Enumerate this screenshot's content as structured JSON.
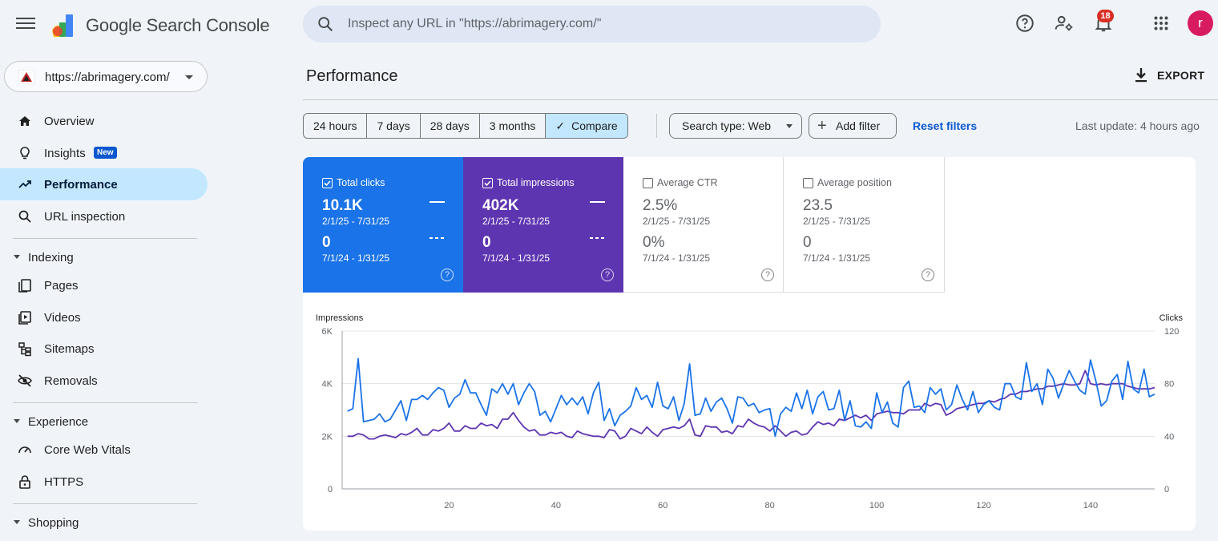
{
  "app": {
    "title": "Google Search Console"
  },
  "search": {
    "placeholder": "Inspect any URL in \"https://abrimagery.com/\""
  },
  "topbar": {
    "notification_count": "18",
    "avatar_letter": "r"
  },
  "property": {
    "url": "https://abrimagery.com/"
  },
  "nav": {
    "items": [
      {
        "label": "Overview",
        "icon": "home-icon"
      },
      {
        "label": "Insights",
        "icon": "lightbulb-icon",
        "badge": "New"
      },
      {
        "label": "Performance",
        "icon": "trending-up-icon",
        "active": true
      },
      {
        "label": "URL inspection",
        "icon": "search-icon"
      }
    ],
    "indexing": {
      "label": "Indexing",
      "items": [
        {
          "label": "Pages",
          "icon": "pages-icon"
        },
        {
          "label": "Videos",
          "icon": "video-icon"
        },
        {
          "label": "Sitemaps",
          "icon": "sitemap-icon"
        },
        {
          "label": "Removals",
          "icon": "eye-off-icon"
        }
      ]
    },
    "experience": {
      "label": "Experience",
      "items": [
        {
          "label": "Core Web Vitals",
          "icon": "speed-gauge-icon"
        },
        {
          "label": "HTTPS",
          "icon": "lock-icon"
        }
      ]
    },
    "shopping": {
      "label": "Shopping"
    }
  },
  "page": {
    "title": "Performance",
    "export_label": "EXPORT"
  },
  "filters": {
    "date_ranges": [
      "24 hours",
      "7 days",
      "28 days",
      "3 months",
      "Compare"
    ],
    "selected": "Compare",
    "search_type": "Search type: Web",
    "add_filter": "Add filter",
    "reset": "Reset filters",
    "last_update": "Last update: 4 hours ago"
  },
  "metrics": {
    "clicks": {
      "label": "Total clicks",
      "value": "10.1K",
      "range": "2/1/25 - 7/31/25",
      "compare_value": "0",
      "compare_range": "7/1/24 - 1/31/25",
      "checked": true,
      "color": "#1a73e8"
    },
    "impressions": {
      "label": "Total impressions",
      "value": "402K",
      "range": "2/1/25 - 7/31/25",
      "compare_value": "0",
      "compare_range": "7/1/24 - 1/31/25",
      "checked": true,
      "color": "#5e35b1"
    },
    "ctr": {
      "label": "Average CTR",
      "value": "2.5%",
      "range": "2/1/25 - 7/31/25",
      "compare_value": "0%",
      "compare_range": "7/1/24 - 1/31/25",
      "checked": false
    },
    "position": {
      "label": "Average position",
      "value": "23.5",
      "range": "2/1/25 - 7/31/25",
      "compare_value": "0",
      "compare_range": "7/1/24 - 1/31/25",
      "checked": false
    }
  },
  "chart_data": {
    "type": "line",
    "left_axis_label": "Impressions",
    "right_axis_label": "Clicks",
    "left_ticks": [
      "0",
      "2K",
      "4K",
      "6K"
    ],
    "right_ticks": [
      "0",
      "40",
      "80",
      "120"
    ],
    "x_ticks": [
      20,
      40,
      60,
      80,
      100,
      120,
      140
    ],
    "xlim": [
      0,
      152
    ],
    "ylim_left": [
      0,
      6000
    ],
    "ylim_right": [
      0,
      120
    ],
    "series": [
      {
        "color": "#1a73e8",
        "axis": "right",
        "x_start": 1,
        "values": [
          59,
          61,
          99,
          51,
          52,
          53,
          57,
          51,
          53,
          60,
          67,
          52,
          68,
          68,
          71,
          68,
          73,
          77,
          75,
          62,
          69,
          72,
          83,
          73,
          73,
          64,
          56,
          76,
          73,
          80,
          72,
          80,
          64,
          73,
          80,
          74,
          56,
          59,
          51,
          61,
          71,
          64,
          69,
          64,
          70,
          57,
          73,
          81,
          52,
          61,
          48,
          56,
          59,
          63,
          77,
          68,
          71,
          62,
          81,
          63,
          61,
          70,
          52,
          65,
          95,
          56,
          57,
          69,
          59,
          66,
          69,
          61,
          50,
          70,
          69,
          63,
          65,
          58,
          60,
          61,
          40,
          57,
          62,
          59,
          73,
          61,
          75,
          57,
          70,
          74,
          60,
          61,
          75,
          52,
          67,
          48,
          47,
          51,
          46,
          73,
          58,
          66,
          50,
          47,
          77,
          82,
          62,
          63,
          58,
          77,
          72,
          76,
          60,
          64,
          79,
          68,
          60,
          74,
          58,
          64,
          67,
          62,
          60,
          80,
          80,
          70,
          68,
          96,
          74,
          80,
          64,
          91,
          84,
          69,
          80,
          90,
          82,
          75,
          72,
          98,
          82,
          63,
          67,
          82,
          87,
          68,
          97,
          76,
          73,
          91,
          70,
          72
        ]
      },
      {
        "color": "#5e35b1",
        "axis": "right",
        "x_start": 1,
        "values": [
          40,
          40,
          42,
          41,
          38,
          38,
          40,
          41,
          40,
          39,
          42,
          41,
          43,
          46,
          41,
          41,
          45,
          44,
          46,
          50,
          44,
          44,
          48,
          46,
          46,
          50,
          48,
          49,
          46,
          53,
          53,
          58,
          52,
          47,
          44,
          45,
          41,
          41,
          43,
          42,
          43,
          40,
          39,
          44,
          42,
          41,
          40,
          40,
          39,
          45,
          44,
          38,
          40,
          46,
          44,
          42,
          47,
          43,
          40,
          45,
          46,
          47,
          46,
          48,
          53,
          41,
          40,
          48,
          47,
          47,
          43,
          44,
          42,
          48,
          47,
          53,
          50,
          48,
          47,
          44,
          48,
          44,
          40,
          43,
          44,
          41,
          42,
          47,
          51,
          49,
          50,
          48,
          53,
          52,
          54,
          56,
          54,
          56,
          52,
          57,
          58,
          59,
          58,
          58,
          57,
          60,
          60,
          60,
          65,
          63,
          65,
          64,
          56,
          58,
          61,
          62,
          63,
          64,
          65,
          65,
          67,
          66,
          68,
          69,
          72,
          72,
          74,
          74,
          75,
          76,
          76,
          78,
          78,
          79,
          80,
          79,
          79,
          80,
          90,
          80,
          79,
          80,
          79,
          80,
          80,
          80,
          78,
          77,
          76,
          76,
          76,
          77
        ]
      }
    ]
  }
}
